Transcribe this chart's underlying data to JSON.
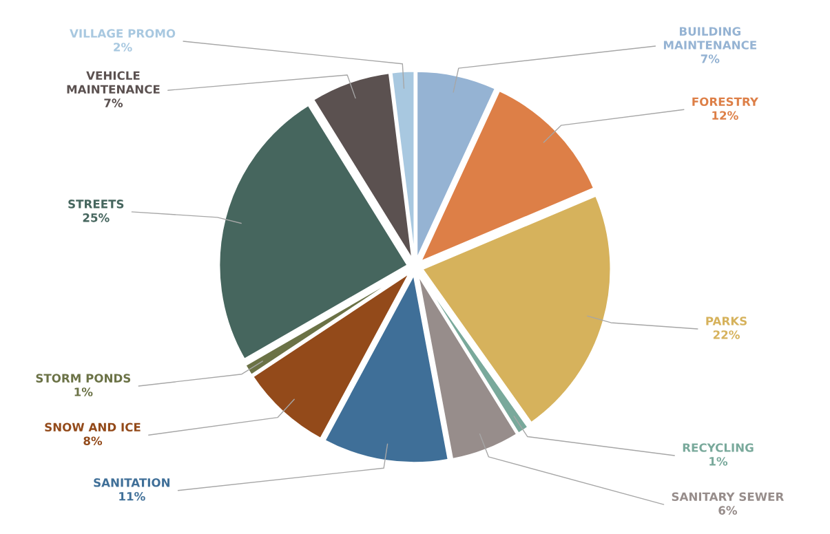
{
  "chart_data": {
    "type": "pie",
    "categories": [
      "BUILDING MAINTENANCE",
      "FORESTRY",
      "PARKS",
      "RECYCLING",
      "SANITARY SEWER",
      "SANITATION",
      "SNOW AND ICE",
      "STORM PONDS",
      "STREETS",
      "VEHICLE MAINTENANCE",
      "VILLAGE PROMO"
    ],
    "values": [
      7,
      12,
      22,
      1,
      6,
      11,
      8,
      1,
      25,
      7,
      2
    ],
    "value_labels": [
      "7%",
      "12%",
      "22%",
      "1%",
      "6%",
      "11%",
      "8%",
      "1%",
      "25%",
      "7%",
      "2%"
    ],
    "colors": [
      "#95b3d3",
      "#dd7f47",
      "#d6b25c",
      "#79a99b",
      "#978d8b",
      "#3f6f98",
      "#934a1a",
      "#6b7246",
      "#46665e",
      "#5b5150",
      "#a8c8e0"
    ],
    "legend": false
  }
}
